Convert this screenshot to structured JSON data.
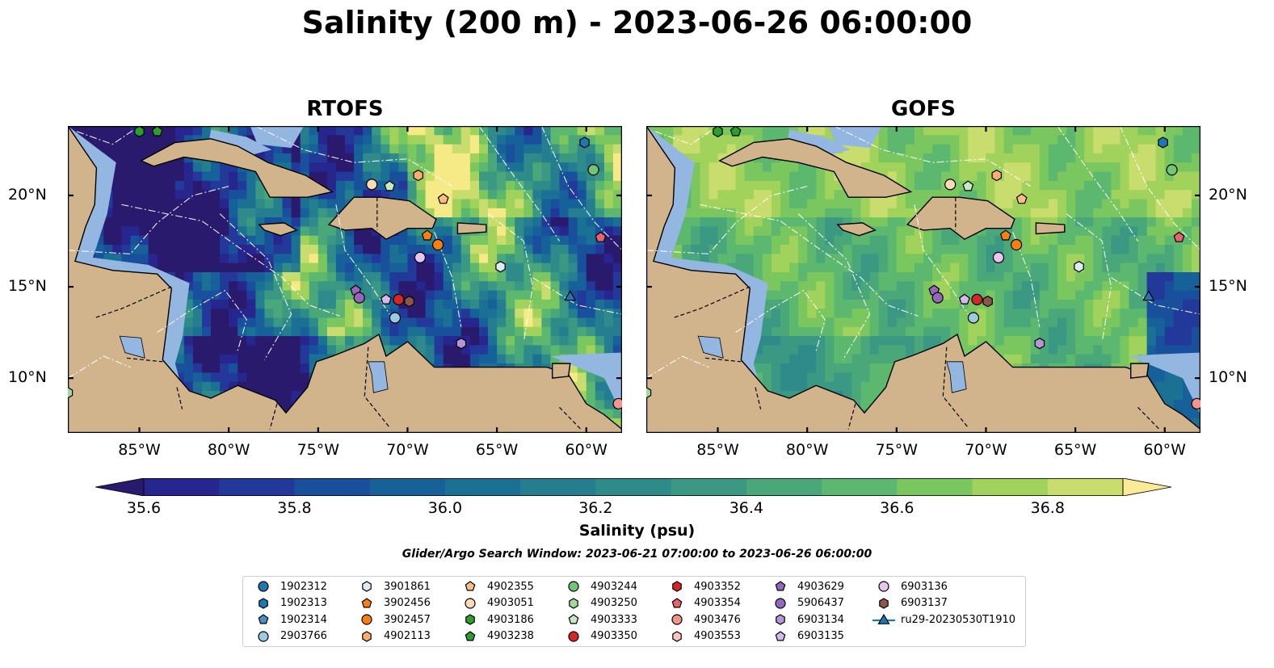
{
  "title": "Salinity (200 m) - 2023-06-26 06:00:00",
  "panels": [
    {
      "title": "RTOFS",
      "model": "rtofs"
    },
    {
      "title": "GOFS",
      "model": "gofs"
    }
  ],
  "map_extent": {
    "lon": [
      -89.0,
      -58.0
    ],
    "lat": [
      7.0,
      23.8
    ]
  },
  "lat_labels": [
    {
      "value": 20,
      "text": "20°N"
    },
    {
      "value": 15,
      "text": "15°N"
    },
    {
      "value": 10,
      "text": "10°N"
    }
  ],
  "lon_labels": [
    {
      "value": -85,
      "text": "85°W"
    },
    {
      "value": -80,
      "text": "80°W"
    },
    {
      "value": -75,
      "text": "75°W"
    },
    {
      "value": -70,
      "text": "70°W"
    },
    {
      "value": -65,
      "text": "65°W"
    },
    {
      "value": -60,
      "text": "60°W"
    }
  ],
  "colorbar": {
    "label": "Salinity (psu)",
    "range": [
      35.5,
      37.0
    ],
    "levels": [
      35.5,
      35.6,
      35.7,
      35.8,
      35.9,
      36.0,
      36.1,
      36.2,
      36.3,
      36.4,
      36.5,
      36.6,
      36.7,
      36.8,
      36.9,
      37.0
    ],
    "colors": [
      "#2a1a6e",
      "#27268f",
      "#23399a",
      "#19509c",
      "#16619a",
      "#1b7193",
      "#257e8f",
      "#2e8b89",
      "#3a9883",
      "#4aa77a",
      "#5db86f",
      "#7ac65f",
      "#a0d25c",
      "#c8dd6d",
      "#f5ea86"
    ],
    "extend_color_low": "#2a1a6e",
    "extend_color_high": "#fbeb98",
    "ticks": [
      "35.6",
      "35.8",
      "36.0",
      "36.2",
      "36.4",
      "36.6",
      "36.8"
    ]
  },
  "colors": {
    "land": "#d2b48c",
    "shelf": "#93b7e1",
    "river": "#9fb9d5"
  },
  "search_window": "Glider/Argo Search Window: 2023-06-21 07:00:00 to 2023-06-26 06:00:00",
  "legend": [
    {
      "label": "1902312",
      "marker": "circle",
      "color": "#1f77b4"
    },
    {
      "label": "1902313",
      "marker": "hexagon",
      "color": "#1f77b4"
    },
    {
      "label": "1902314",
      "marker": "pentagon",
      "color": "#4a90c8"
    },
    {
      "label": "2903766",
      "marker": "circle",
      "color": "#9ecae1"
    },
    {
      "label": "3901861",
      "marker": "hexagon",
      "color": "#deebf7"
    },
    {
      "label": "3902456",
      "marker": "pentagon",
      "color": "#ff7f0e"
    },
    {
      "label": "3902457",
      "marker": "circle",
      "color": "#ff7f0e"
    },
    {
      "label": "4902113",
      "marker": "hexagon",
      "color": "#fdae6b"
    },
    {
      "label": "4902355",
      "marker": "pentagon",
      "color": "#fdbf80"
    },
    {
      "label": "4903051",
      "marker": "circle",
      "color": "#fdd9b5"
    },
    {
      "label": "4903186",
      "marker": "hexagon",
      "color": "#2ca02c"
    },
    {
      "label": "4903238",
      "marker": "pentagon",
      "color": "#2ca02c"
    },
    {
      "label": "4903244",
      "marker": "circle",
      "color": "#74c476"
    },
    {
      "label": "4903250",
      "marker": "hexagon",
      "color": "#a1d99b"
    },
    {
      "label": "4903333",
      "marker": "pentagon",
      "color": "#c7e9c0"
    },
    {
      "label": "4903350",
      "marker": "circle",
      "color": "#d62728"
    },
    {
      "label": "4903352",
      "marker": "hexagon",
      "color": "#d62728"
    },
    {
      "label": "4903354",
      "marker": "pentagon",
      "color": "#e8636b"
    },
    {
      "label": "4903476",
      "marker": "circle",
      "color": "#f4948c"
    },
    {
      "label": "4903553",
      "marker": "hexagon",
      "color": "#fcc5c0"
    },
    {
      "label": "4903629",
      "marker": "pentagon",
      "color": "#9467bd"
    },
    {
      "label": "5906437",
      "marker": "circle",
      "color": "#9467bd"
    },
    {
      "label": "6903134",
      "marker": "hexagon",
      "color": "#b695d6"
    },
    {
      "label": "6903135",
      "marker": "pentagon",
      "color": "#d5b9ee"
    },
    {
      "label": "6903136",
      "marker": "circle",
      "color": "#e6c5f0"
    },
    {
      "label": "6903137",
      "marker": "hexagon",
      "color": "#8c564b"
    },
    {
      "label": "ru29-20230530T1910",
      "marker": "triangle-line",
      "color": "#1f77b4"
    }
  ],
  "floats": [
    {
      "id": "1902313",
      "lon": -60.1,
      "lat": 22.9
    },
    {
      "id": "4903244",
      "lon": -59.6,
      "lat": 21.4
    },
    {
      "id": "4903186",
      "lon": -85.0,
      "lat": 23.5
    },
    {
      "id": "4903238",
      "lon": -84.0,
      "lat": 23.5
    },
    {
      "id": "4902113",
      "lon": -69.4,
      "lat": 21.1
    },
    {
      "id": "4903051",
      "lon": -72.0,
      "lat": 20.6
    },
    {
      "id": "4903333",
      "lon": -71.0,
      "lat": 20.5
    },
    {
      "id": "4902355",
      "lon": -68.0,
      "lat": 19.8
    },
    {
      "id": "3902456",
      "lon": -68.9,
      "lat": 17.8
    },
    {
      "id": "3902457",
      "lon": -68.3,
      "lat": 17.3
    },
    {
      "id": "4903354",
      "lon": -59.2,
      "lat": 17.7
    },
    {
      "id": "6903136",
      "lon": -69.3,
      "lat": 16.6
    },
    {
      "id": "3901861",
      "lon": -64.8,
      "lat": 16.1
    },
    {
      "id": "4903629",
      "lon": -72.9,
      "lat": 14.8
    },
    {
      "id": "5906437",
      "lon": -72.7,
      "lat": 14.4
    },
    {
      "id": "6903135",
      "lon": -71.2,
      "lat": 14.3
    },
    {
      "id": "4903350",
      "lon": -70.5,
      "lat": 14.3
    },
    {
      "id": "6903137",
      "lon": -69.9,
      "lat": 14.2
    },
    {
      "id": "2903766",
      "lon": -70.7,
      "lat": 13.3
    },
    {
      "id": "6903134",
      "lon": -67.0,
      "lat": 11.9
    },
    {
      "id": "4903476",
      "lon": -58.2,
      "lat": 8.6
    },
    {
      "id": "4903250",
      "lon": -89.0,
      "lat": 9.2
    },
    {
      "id": "ru29-20230530T1910",
      "lon": -60.9,
      "lat": 14.5
    }
  ]
}
